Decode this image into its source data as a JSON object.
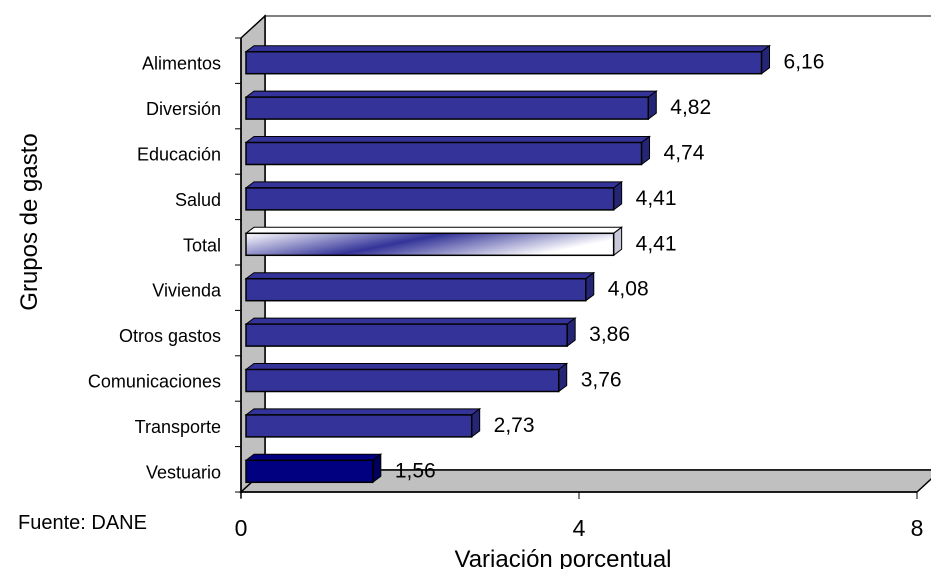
{
  "chart_data": {
    "type": "bar",
    "orientation": "horizontal",
    "categories": [
      "Alimentos",
      "Diversión",
      "Educación",
      "Salud",
      "Total",
      "Vivienda",
      "Otros gastos",
      "Comunicaciones",
      "Transporte",
      "Vestuario"
    ],
    "values": [
      6.16,
      4.82,
      4.74,
      4.41,
      4.41,
      4.08,
      3.86,
      3.76,
      2.73,
      1.56
    ],
    "value_labels": [
      "6,16",
      "4,82",
      "4,74",
      "4,41",
      "4,41",
      "4,08",
      "3,86",
      "3,76",
      "2,73",
      "1,56"
    ],
    "xlabel": "Variación porcentual",
    "ylabel": "Grupos de gasto",
    "xlim": [
      0,
      8
    ],
    "xticks": [
      "0",
      "4",
      "8"
    ],
    "grid": false,
    "legend": "none",
    "style": "3d",
    "colors": {
      "bar": "#333399",
      "bar_side": "#252575",
      "highlight_last": "#000080",
      "total_gradient": [
        "#333399",
        "#ffffff"
      ],
      "wall": "#c0c0c0",
      "wall_edge": "#808080"
    }
  },
  "source_note": "Fuente: DANE"
}
